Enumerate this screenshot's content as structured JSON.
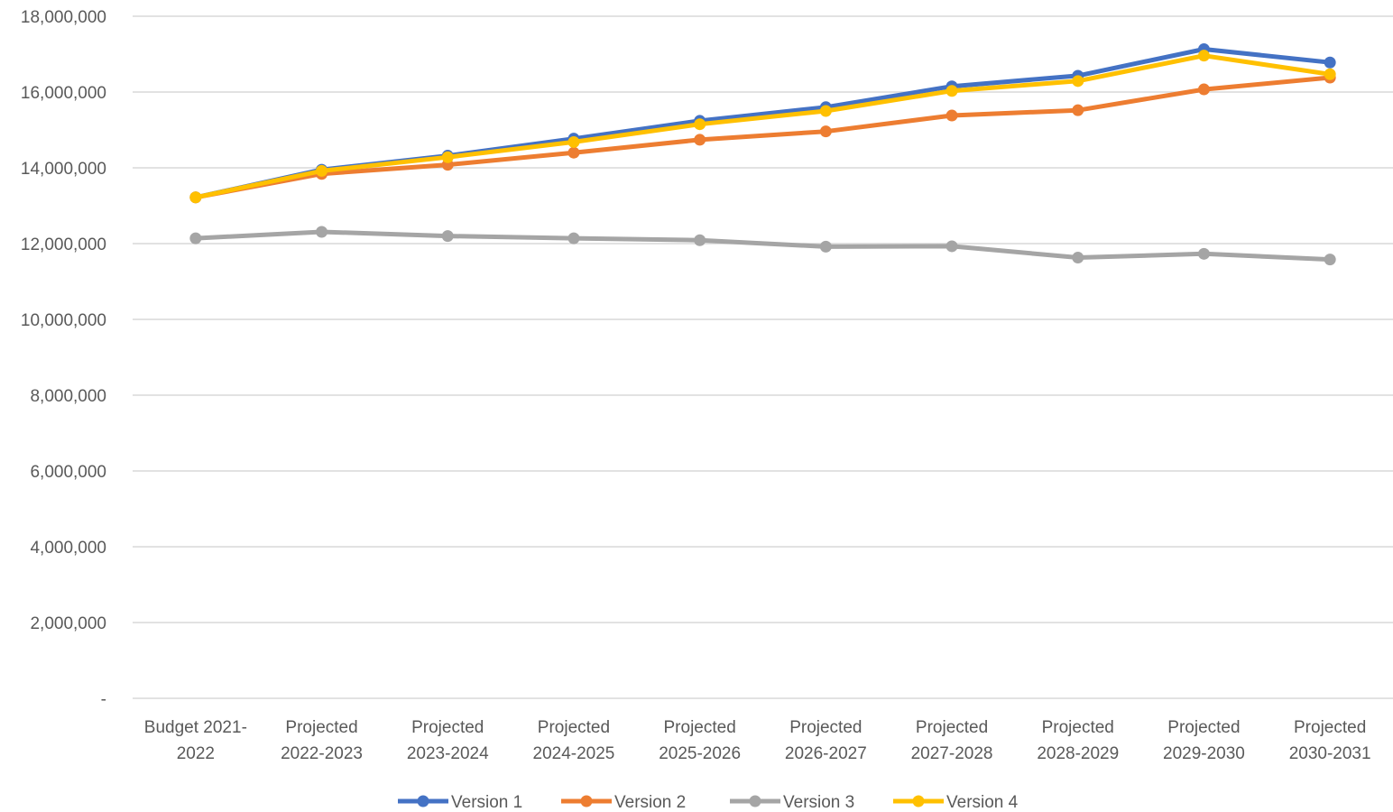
{
  "chart_data": {
    "type": "line",
    "title": "",
    "xlabel": "",
    "ylabel": "",
    "ylim": [
      0,
      18000000
    ],
    "yticks": [
      {
        "value": 0,
        "label": "-"
      },
      {
        "value": 2000000,
        "label": "2,000,000"
      },
      {
        "value": 4000000,
        "label": "4,000,000"
      },
      {
        "value": 6000000,
        "label": "6,000,000"
      },
      {
        "value": 8000000,
        "label": "8,000,000"
      },
      {
        "value": 10000000,
        "label": "10,000,000"
      },
      {
        "value": 12000000,
        "label": "12,000,000"
      },
      {
        "value": 14000000,
        "label": "14,000,000"
      },
      {
        "value": 16000000,
        "label": "16,000,000"
      },
      {
        "value": 18000000,
        "label": "18,000,000"
      }
    ],
    "categories": [
      [
        "Budget 2021-",
        "2022"
      ],
      [
        "Projected",
        "2022-2023"
      ],
      [
        "Projected",
        "2023-2024"
      ],
      [
        "Projected",
        "2024-2025"
      ],
      [
        "Projected",
        "2025-2026"
      ],
      [
        "Projected",
        "2026-2027"
      ],
      [
        "Projected",
        "2027-2028"
      ],
      [
        "Projected",
        "2028-2029"
      ],
      [
        "Projected",
        "2029-2030"
      ],
      [
        "Projected",
        "2030-2031"
      ]
    ],
    "grid": true,
    "legend_position": "bottom",
    "series": [
      {
        "name": "Version 1",
        "color": "#4472C4",
        "values": [
          13220000,
          13950000,
          14320000,
          14770000,
          15240000,
          15600000,
          16150000,
          16430000,
          17130000,
          16780000
        ]
      },
      {
        "name": "Version 2",
        "color": "#ED7D31",
        "values": [
          13220000,
          13840000,
          14080000,
          14400000,
          14740000,
          14960000,
          15380000,
          15520000,
          16070000,
          16380000
        ]
      },
      {
        "name": "Version 3",
        "color": "#A5A5A5",
        "values": [
          12140000,
          12310000,
          12200000,
          12140000,
          12090000,
          11920000,
          11930000,
          11630000,
          11730000,
          11580000
        ]
      },
      {
        "name": "Version 4",
        "color": "#FFC000",
        "values": [
          13220000,
          13920000,
          14280000,
          14680000,
          15150000,
          15500000,
          16030000,
          16290000,
          16960000,
          16470000
        ]
      }
    ]
  }
}
